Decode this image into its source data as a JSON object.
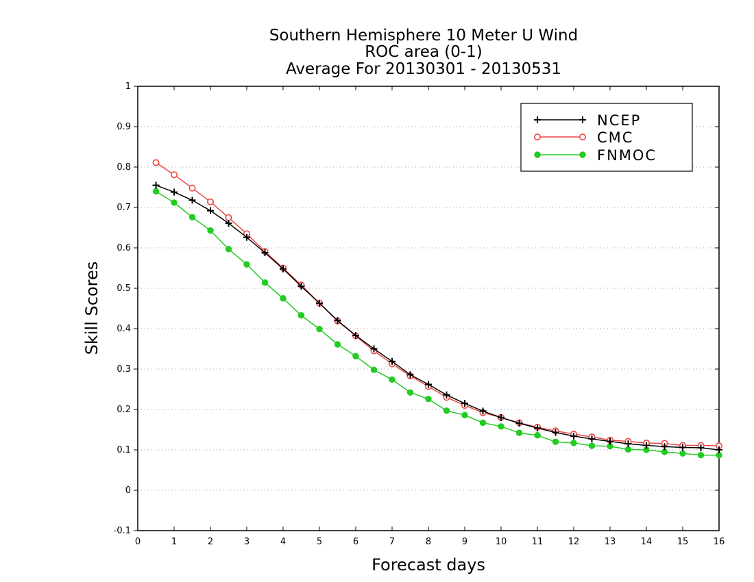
{
  "chart_data": {
    "type": "line",
    "title_lines": [
      "Southern Hemisphere 10 Meter U Wind",
      "ROC area (0-1)",
      "Average For 20130301 - 20130531"
    ],
    "xlabel": "Forecast days",
    "ylabel": "Skill Scores",
    "xlim": [
      0,
      16
    ],
    "ylim": [
      -0.1,
      1
    ],
    "x_ticks": [
      0,
      1,
      2,
      3,
      4,
      5,
      6,
      7,
      8,
      9,
      10,
      11,
      12,
      13,
      14,
      15,
      16
    ],
    "x_tick_labels": [
      "0",
      "1",
      "2",
      "3",
      "4",
      "5",
      "6",
      "7",
      "8",
      "9",
      "10",
      "11",
      "12",
      "13",
      "14",
      "15",
      "16"
    ],
    "y_ticks": [
      -0.1,
      0,
      0.1,
      0.2,
      0.3,
      0.4,
      0.5,
      0.6,
      0.7,
      0.8,
      0.9,
      1
    ],
    "y_tick_labels": [
      "-0.1",
      "0",
      "0.1",
      "0.2",
      "0.3",
      "0.4",
      "0.5",
      "0.6",
      "0.7",
      "0.8",
      "0.9",
      "1"
    ],
    "grid": "horizontal-dotted",
    "legend_position": "top-right",
    "x": [
      0.5,
      1,
      1.5,
      2,
      2.5,
      3,
      3.5,
      4,
      4.5,
      5,
      5.5,
      6,
      6.5,
      7,
      7.5,
      8,
      8.5,
      9,
      9.5,
      10,
      10.5,
      11,
      11.5,
      12,
      12.5,
      13,
      13.5,
      14,
      14.5,
      15,
      15.5,
      16
    ],
    "series": [
      {
        "name": "NCEP",
        "color": "#000000",
        "marker": "plus",
        "values": [
          0.755,
          0.738,
          0.718,
          0.692,
          0.661,
          0.626,
          0.588,
          0.548,
          0.505,
          0.463,
          0.42,
          0.383,
          0.35,
          0.319,
          0.286,
          0.262,
          0.236,
          0.215,
          0.196,
          0.18,
          0.166,
          0.154,
          0.143,
          0.134,
          0.127,
          0.121,
          0.115,
          0.111,
          0.108,
          0.106,
          0.105,
          0.1
        ]
      },
      {
        "name": "CMC",
        "color": "#ee4444",
        "marker": "open-circle",
        "values": [
          0.811,
          0.781,
          0.748,
          0.714,
          0.675,
          0.635,
          0.591,
          0.55,
          0.508,
          0.463,
          0.419,
          0.382,
          0.345,
          0.313,
          0.283,
          0.257,
          0.23,
          0.21,
          0.192,
          0.18,
          0.167,
          0.156,
          0.147,
          0.139,
          0.132,
          0.124,
          0.121,
          0.117,
          0.116,
          0.111,
          0.111,
          0.11
        ]
      },
      {
        "name": "FNMOC",
        "color": "#22cc22",
        "marker": "filled-circle",
        "values": [
          0.74,
          0.712,
          0.676,
          0.643,
          0.597,
          0.559,
          0.514,
          0.475,
          0.433,
          0.399,
          0.361,
          0.332,
          0.298,
          0.274,
          0.242,
          0.226,
          0.197,
          0.186,
          0.167,
          0.158,
          0.142,
          0.136,
          0.12,
          0.117,
          0.11,
          0.109,
          0.101,
          0.1,
          0.095,
          0.091,
          0.087,
          0.087
        ]
      }
    ]
  }
}
